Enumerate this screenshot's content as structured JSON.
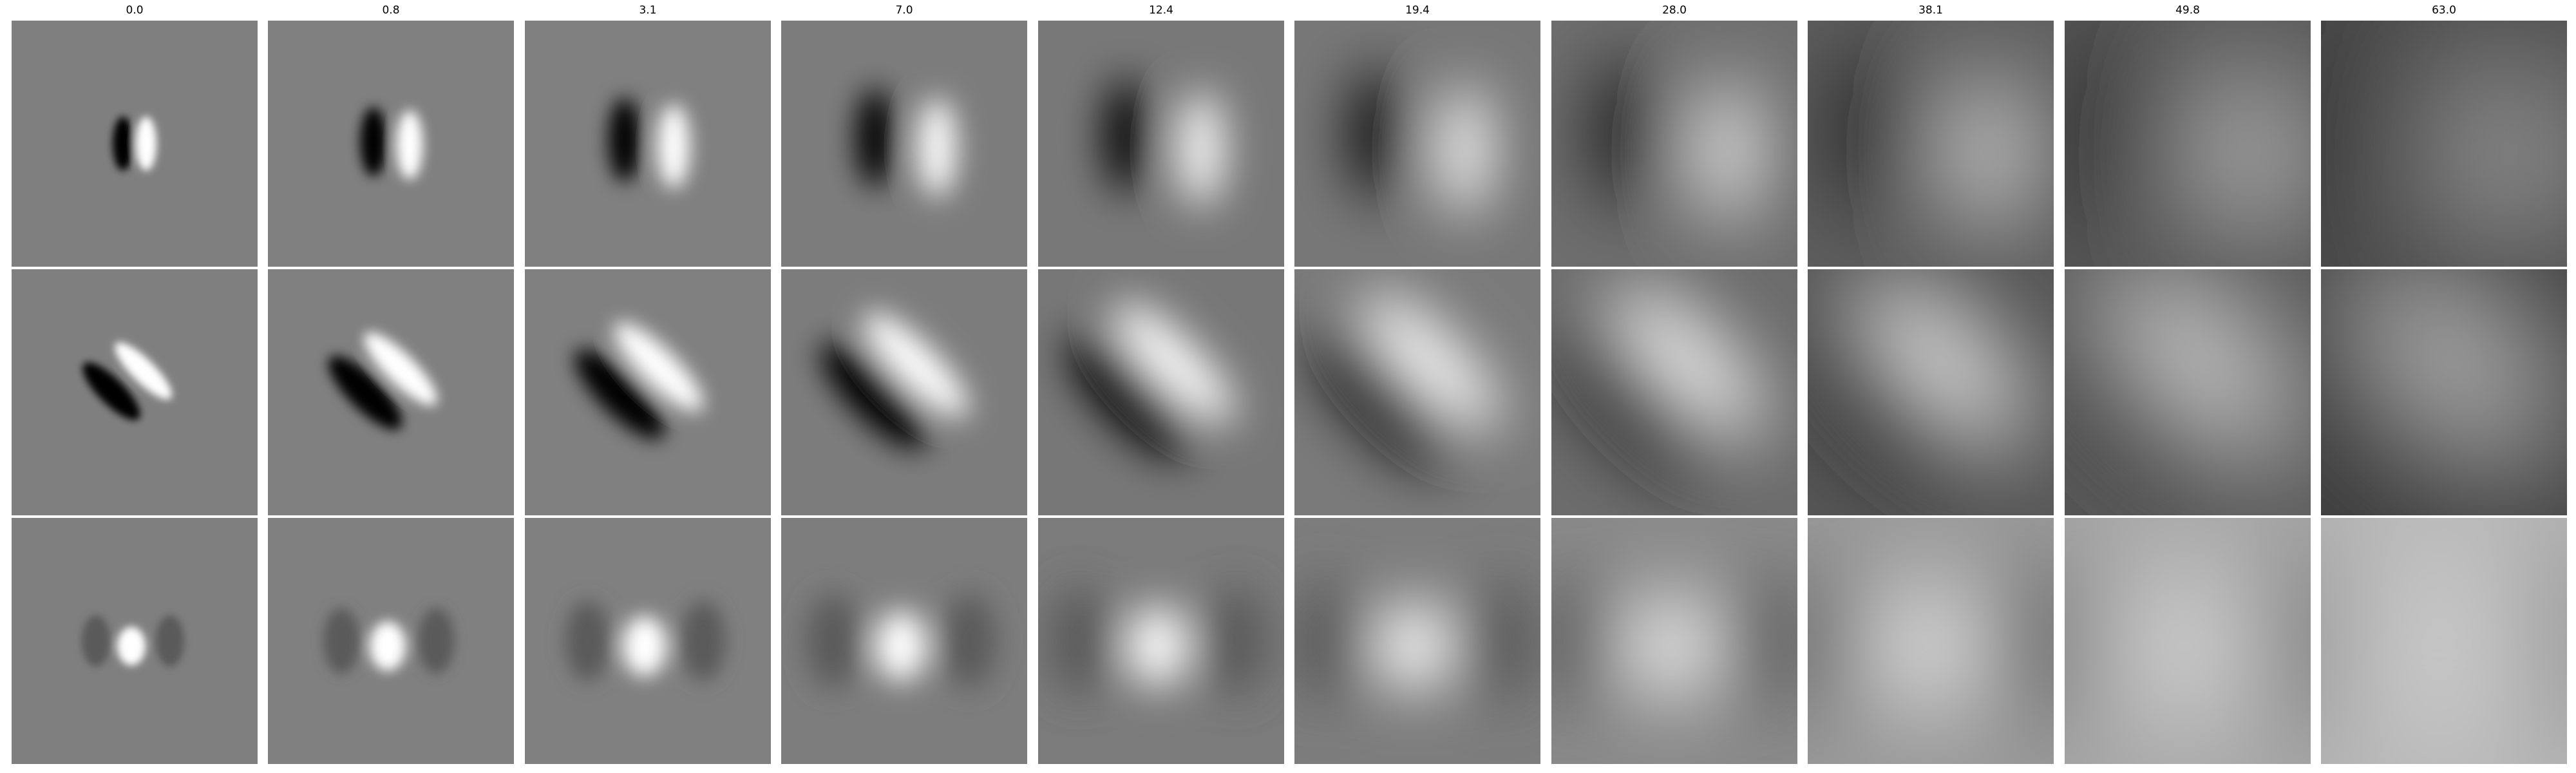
{
  "figure": {
    "column_titles": [
      "0.0",
      "0.8",
      "3.1",
      "7.0",
      "12.4",
      "19.4",
      "28.0",
      "38.1",
      "49.8",
      "63.0"
    ],
    "rows": 3,
    "colormap": "gray",
    "colors": {
      "background": "#ffffff",
      "mid_gray": "#808080",
      "black": "#000000",
      "white": "#ffffff"
    }
  }
}
